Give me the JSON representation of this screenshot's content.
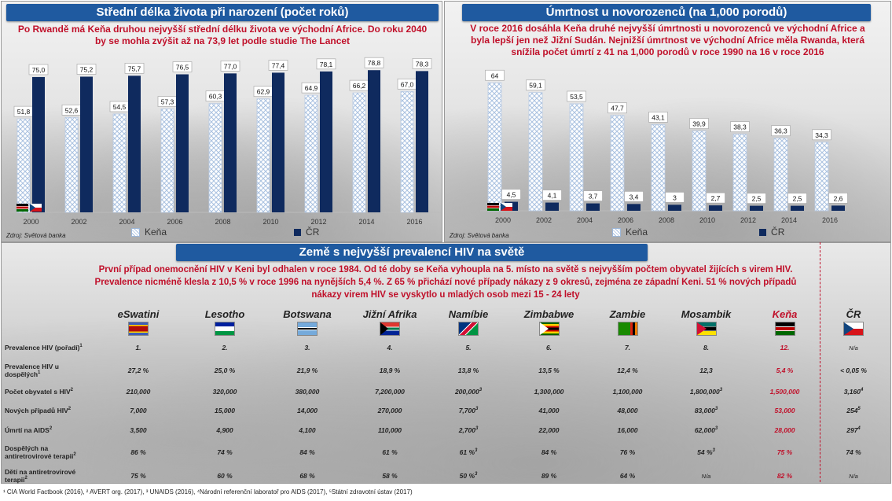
{
  "left_panel": {
    "title": "Střední délka života při narození (počet roků)",
    "subtitle_1": "Po Rwandě má Keňa druhou nejvyšší střední délku života ve východní Africe. Do roku 2040",
    "subtitle_2": "by se mohla zvýšit až na 73,9 let podle studie The Lancet",
    "source": "Zdroj: Světová banka"
  },
  "right_panel": {
    "title": "Úmrtnost u novorozenců (na 1,000 porodů)",
    "subtitle_1": "V roce 2016 dosáhla Keňa druhé nejvyšší úmrtnosti u novorozenců ve východní Africe a",
    "subtitle_2": "byla lepší jen než Jižní Sudán. Nejnižší úmrtnost ve východní Africe měla Rwanda, která",
    "subtitle_3": "snížila počet úmrtí z 41 na 1,000 porodů v roce 1990 na 16 v roce 2016",
    "source": "Zdroj: Světová banka"
  },
  "chart_data": [
    {
      "type": "bar",
      "title": "Střední délka života při narození (počet roků)",
      "categories": [
        "2000",
        "2002",
        "2004",
        "2006",
        "2008",
        "2010",
        "2012",
        "2014",
        "2016"
      ],
      "series": [
        {
          "name": "Keňa",
          "values": [
            51.8,
            52.6,
            54.5,
            57.3,
            60.3,
            62.9,
            64.9,
            66.2,
            67.0
          ],
          "labels": [
            "51,8",
            "52,6",
            "54,5",
            "57,3",
            "60,3",
            "62,9",
            "64,9",
            "66,2",
            "67,0"
          ],
          "color": "#a9c1e0"
        },
        {
          "name": "ČR",
          "values": [
            75.0,
            75.2,
            75.7,
            76.5,
            77.0,
            77.4,
            78.1,
            78.8,
            78.3
          ],
          "labels": [
            "75,0",
            "75,2",
            "75,7",
            "76,5",
            "77,0",
            "77,4",
            "78,1",
            "78,8",
            "78,3"
          ],
          "color": "#0f2a5e"
        }
      ],
      "ylim": [
        0,
        85
      ],
      "legend": "bottom"
    },
    {
      "type": "bar",
      "title": "Úmrtnost u novorozenců (na 1,000 porodů)",
      "categories": [
        "2000",
        "2002",
        "2004",
        "2006",
        "2008",
        "2010",
        "2012",
        "2014",
        "2016"
      ],
      "series": [
        {
          "name": "Keňa",
          "values": [
            64,
            59.1,
            53.5,
            47.7,
            43.1,
            39.9,
            38.3,
            36.3,
            34.3
          ],
          "labels": [
            "64",
            "59,1",
            "53,5",
            "47,7",
            "43,1",
            "39,9",
            "38,3",
            "36,3",
            "34,3"
          ],
          "color": "#a9c1e0"
        },
        {
          "name": "ČR",
          "values": [
            4.5,
            4.1,
            3.7,
            3.4,
            3,
            2.7,
            2.5,
            2.5,
            2.6
          ],
          "labels": [
            "4,5",
            "4,1",
            "3,7",
            "3,4",
            "3",
            "2,7",
            "2,5",
            "2,5",
            "2,6"
          ],
          "color": "#0f2a5e"
        }
      ],
      "ylim": [
        0,
        70
      ],
      "legend": "bottom"
    }
  ],
  "hiv": {
    "title": "Země s nejvyšší prevalencí HIV na světě",
    "subtitle_1": "První případ onemocnění HIV v Keni byl odhalen v roce 1984. Od té doby se Keňa vyhoupla na 5. místo na světě s nejvyšším počtem obyvatel žijících s virem HIV.",
    "subtitle_2": "Prevalence nicméně klesla z 10,5 % v roce 1996 na nynějších 5,4 %. Z 65 % přichází nové případy nákazy z 9 okresů, zejména ze západní Keni. 51 % nových případů",
    "subtitle_3": "nákazy virem HIV se vyskytlo u mladých osob mezi 15 - 24 lety",
    "countries": [
      "eSwatini",
      "Lesotho",
      "Botswana",
      "Jižní Afrika",
      "Namíbie",
      "Zimbabwe",
      "Zambie",
      "Mosambik",
      "Keňa",
      "ČR"
    ],
    "rows": [
      {
        "label": "Prevalence HIV (pořadí)",
        "sup": "1",
        "values": [
          "1.",
          "2.",
          "3.",
          "4.",
          "5.",
          "6.",
          "7.",
          "8.",
          "12.",
          "N/a"
        ],
        "sups": [
          "",
          "",
          "",
          "",
          "",
          "",
          "",
          "",
          "",
          ""
        ]
      },
      {
        "label": "Prevalence HIV u dospělých",
        "sup": "1",
        "values": [
          "27,2 %",
          "25,0 %",
          "21,9 %",
          "18,9 %",
          "13,8 %",
          "13,5 %",
          "12,4 %",
          "12,3",
          "5,4 %",
          "< 0,05 %"
        ],
        "sups": [
          "",
          "",
          "",
          "",
          "",
          "",
          "",
          "",
          "",
          ""
        ]
      },
      {
        "label": "Počet obyvatel s HIV",
        "sup": "2",
        "values": [
          "210,000",
          "320,000",
          "380,000",
          "7,200,000",
          "200,000",
          "1,300,000",
          "1,100,000",
          "1,800,000",
          "1,500,000",
          "3,160"
        ],
        "sups": [
          "",
          "",
          "",
          "",
          "3",
          "",
          "",
          "3",
          "",
          "4"
        ]
      },
      {
        "label": "Nových případů HIV",
        "sup": "2",
        "values": [
          "7,000",
          "15,000",
          "14,000",
          "270,000",
          "7,700",
          "41,000",
          "48,000",
          "83,000",
          "53,000",
          "254"
        ],
        "sups": [
          "",
          "",
          "",
          "",
          "3",
          "",
          "",
          "3",
          "",
          "5"
        ]
      },
      {
        "label": "Úmrtí na AIDS",
        "sup": "2",
        "values": [
          "3,500",
          "4,900",
          "4,100",
          "110,000",
          "2,700",
          "22,000",
          "16,000",
          "62,000",
          "28,000",
          "297"
        ],
        "sups": [
          "",
          "",
          "",
          "",
          "3",
          "",
          "",
          "3",
          "",
          "4"
        ]
      },
      {
        "label": "Dospělých na antiretrovirové terapii",
        "sup": "2",
        "values": [
          "86 %",
          "74 %",
          "84 %",
          "61 %",
          "61 %",
          "84 %",
          "76 %",
          "54 %",
          "75 %",
          "74 %"
        ],
        "sups": [
          "",
          "",
          "",
          "",
          "3",
          "",
          "",
          "3",
          "",
          ""
        ]
      },
      {
        "label": "Dětí na antiretrovirové terapii",
        "sup": "2",
        "values": [
          "75 %",
          "60 %",
          "68 %",
          "58 %",
          "50 %",
          "89 %",
          "64 %",
          "N/a",
          "82 %",
          "N/a"
        ],
        "sups": [
          "",
          "",
          "",
          "",
          "3",
          "",
          "",
          "",
          "",
          ""
        ]
      }
    ],
    "footer": "¹ CIA World Factbook (2016), ² AVERT org. (2017), ³ UNAIDS (2016), ⁴Národní referenční laboratoř pro AIDS (2017), ⁵Státní zdravotní ústav (2017)"
  },
  "colors": {
    "kenya": "#a9c1e0",
    "cz": "#0f2a5e",
    "title_bar": "#1f5aa0",
    "accent_red": "#c0102a"
  }
}
